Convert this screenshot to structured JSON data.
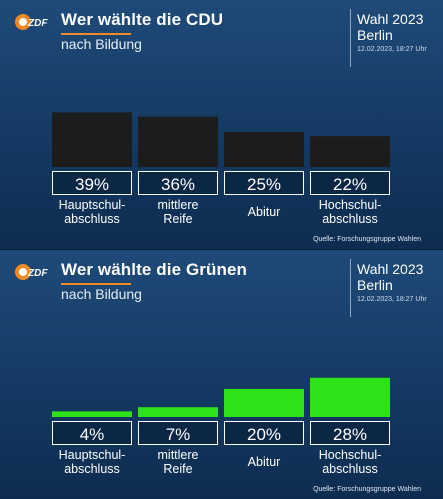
{
  "source_label": "Quelle: Forschungsgruppe Wahlen",
  "logo_text": "ZDF",
  "info": {
    "line1": "Wahl 2023",
    "line2": "Berlin",
    "timestamp": "12.02.2023, 18:27 Uhr"
  },
  "chart_data": [
    {
      "type": "bar",
      "title": "Wer wählte die CDU",
      "subtitle": "nach Bildung",
      "categories": [
        [
          "Hauptschul-",
          "abschluss"
        ],
        [
          "mittlere",
          "Reife"
        ],
        [
          "Abitur"
        ],
        [
          "Hochschul-",
          "abschluss"
        ]
      ],
      "values": [
        39,
        36,
        25,
        22
      ],
      "value_labels": [
        "39%",
        "36%",
        "25%",
        "22%"
      ],
      "bar_color": "#1c1c1c",
      "ylim": [
        0,
        40
      ]
    },
    {
      "type": "bar",
      "title": "Wer wählte die Grünen",
      "subtitle": "nach Bildung",
      "categories": [
        [
          "Hauptschul-",
          "abschluss"
        ],
        [
          "mittlere",
          "Reife"
        ],
        [
          "Abitur"
        ],
        [
          "Hochschul-",
          "abschluss"
        ]
      ],
      "values": [
        4,
        7,
        20,
        28
      ],
      "value_labels": [
        "4%",
        "7%",
        "20%",
        "28%"
      ],
      "bar_color": "#2ee21a",
      "ylim": [
        0,
        40
      ]
    }
  ]
}
